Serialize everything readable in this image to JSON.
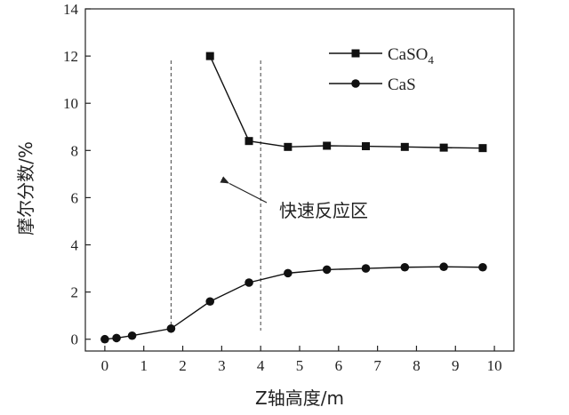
{
  "chart_data": {
    "type": "line",
    "title": "",
    "xlabel": "Z轴高度/m",
    "ylabel": "摩尔分数/%",
    "xlim": [
      -0.5,
      10.5
    ],
    "ylim": [
      -0.5,
      14
    ],
    "xticks": [
      0,
      1,
      2,
      3,
      4,
      5,
      6,
      7,
      8,
      9,
      10
    ],
    "yticks": [
      0,
      2,
      4,
      6,
      8,
      10,
      12,
      14
    ],
    "grid": false,
    "legend_position": "top-right",
    "series": [
      {
        "name": "CaSO4",
        "legend_main": "CaSO",
        "legend_sub": "4",
        "marker": "square",
        "color": "#111111",
        "x": [
          2.7,
          3.7,
          4.7,
          5.7,
          6.7,
          7.7,
          8.7,
          9.7
        ],
        "y": [
          12.0,
          8.4,
          8.15,
          8.2,
          8.18,
          8.15,
          8.12,
          8.1
        ]
      },
      {
        "name": "CaS",
        "legend_main": "CaS",
        "legend_sub": "",
        "marker": "circle",
        "color": "#111111",
        "x": [
          0,
          0.3,
          0.7,
          1.7,
          2.7,
          3.7,
          4.7,
          5.7,
          6.7,
          7.7,
          8.7,
          9.7
        ],
        "y": [
          0.0,
          0.05,
          0.15,
          0.45,
          1.6,
          2.4,
          2.8,
          2.95,
          3.0,
          3.05,
          3.07,
          3.05
        ]
      }
    ],
    "reference_lines": [
      {
        "axis": "x",
        "value": 1.7,
        "style": "dashed"
      },
      {
        "axis": "x",
        "value": 4.0,
        "style": "dashed"
      }
    ],
    "annotation": {
      "text": "快速反应区",
      "arrow_to": {
        "x": 3.2,
        "y": 6.6
      }
    }
  }
}
